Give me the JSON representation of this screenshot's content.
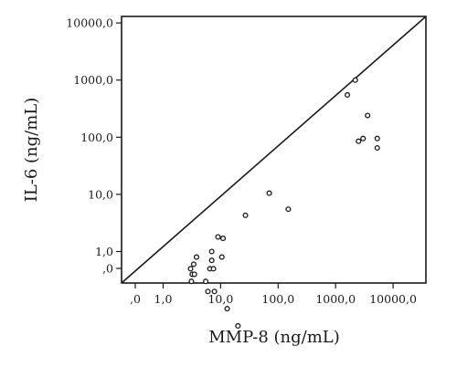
{
  "chart_data": {
    "type": "scatter",
    "xlabel": "MMP-8 (ng/mL)",
    "ylabel": "IL-6 (ng/mL)",
    "x_scale": "log",
    "y_scale": "log",
    "grid": false,
    "legend": "none",
    "reference_line": "identity (y = x)",
    "x_ticks": [
      {
        "value": 0,
        "label": ",0"
      },
      {
        "value": 1,
        "label": "1,0"
      },
      {
        "value": 10,
        "label": "10,0"
      },
      {
        "value": 100,
        "label": "100,0"
      },
      {
        "value": 1000,
        "label": "1000,0"
      },
      {
        "value": 10000,
        "label": "10000,0"
      }
    ],
    "y_ticks": [
      {
        "value": 0,
        "label": ",0"
      },
      {
        "value": 1,
        "label": "1,0"
      },
      {
        "value": 10,
        "label": "10,0"
      },
      {
        "value": 100,
        "label": "100,0"
      },
      {
        "value": 1000,
        "label": "1000,0"
      },
      {
        "value": 10000,
        "label": "10000,0"
      }
    ],
    "points": [
      {
        "x": 3.0,
        "y": 0.5
      },
      {
        "x": 3.2,
        "y": 0.4
      },
      {
        "x": 3.4,
        "y": 0.6
      },
      {
        "x": 3.1,
        "y": 0.3
      },
      {
        "x": 3.5,
        "y": 0.4
      },
      {
        "x": 3.8,
        "y": 0.8
      },
      {
        "x": 5.5,
        "y": 0.3
      },
      {
        "x": 6.0,
        "y": 0.2
      },
      {
        "x": 6.5,
        "y": 0.5
      },
      {
        "x": 7.0,
        "y": 1.0
      },
      {
        "x": 7.0,
        "y": 0.7
      },
      {
        "x": 7.5,
        "y": 0.5
      },
      {
        "x": 7.8,
        "y": 0.2
      },
      {
        "x": 9.0,
        "y": 1.8
      },
      {
        "x": 10.5,
        "y": 0.8
      },
      {
        "x": 11.0,
        "y": 1.7
      },
      {
        "x": 13.0,
        "y": 0.1
      },
      {
        "x": 20.0,
        "y": 0.05
      },
      {
        "x": 27.0,
        "y": 4.3
      },
      {
        "x": 70.0,
        "y": 10.5
      },
      {
        "x": 150.0,
        "y": 5.5
      },
      {
        "x": 1600.0,
        "y": 550.0
      },
      {
        "x": 2200.0,
        "y": 1000.0
      },
      {
        "x": 2500.0,
        "y": 85.0
      },
      {
        "x": 3000.0,
        "y": 95.0
      },
      {
        "x": 3600.0,
        "y": 240.0
      },
      {
        "x": 5300.0,
        "y": 95.0
      },
      {
        "x": 5300.0,
        "y": 65.0
      }
    ]
  }
}
